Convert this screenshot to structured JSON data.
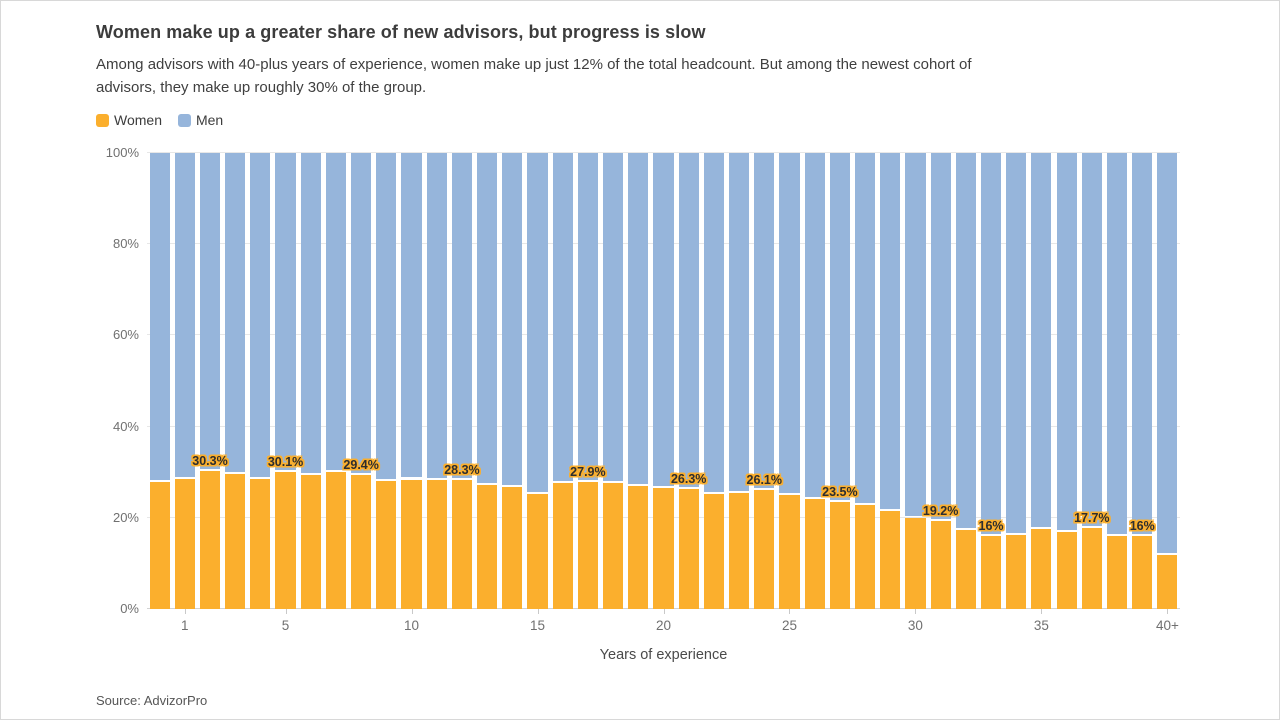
{
  "header": {
    "title": "Women make up a greater share of new advisors, but progress is slow",
    "subtitle_lines": [
      "Among advisors with 40-plus years of experience, women make up just 12% of the total headcount. But among the newest cohort of",
      "advisors, they make up roughly 30% of the group."
    ],
    "legend": [
      {
        "label": "Women",
        "color": "#fbaf2d"
      },
      {
        "label": "Men",
        "color": "#96b5db"
      }
    ]
  },
  "chart_data": {
    "type": "bar",
    "stacked": true,
    "normalized_percent": true,
    "title": "Women make up a greater share of new advisors, but progress is slow",
    "xlabel": "Years of experience",
    "ylabel": "",
    "ylim": [
      0,
      100
    ],
    "grid": true,
    "legend_position": "top-left",
    "categories": [
      "0",
      "1",
      "2",
      "3",
      "4",
      "5",
      "6",
      "7",
      "8",
      "9",
      "10",
      "11",
      "12",
      "13",
      "14",
      "15",
      "16",
      "17",
      "18",
      "19",
      "20",
      "21",
      "22",
      "23",
      "24",
      "25",
      "26",
      "27",
      "28",
      "29",
      "30",
      "31",
      "32",
      "33",
      "34",
      "35",
      "36",
      "37",
      "38",
      "39",
      "40+"
    ],
    "series": [
      {
        "name": "Women",
        "color": "#fbaf2d",
        "values": [
          27.8,
          28.5,
          30.3,
          29.5,
          28.5,
          30.1,
          29.3,
          30.0,
          29.4,
          28.1,
          28.4,
          28.2,
          28.3,
          27.2,
          26.8,
          25.3,
          27.7,
          27.9,
          27.7,
          27.0,
          26.6,
          26.3,
          25.2,
          25.4,
          26.1,
          24.9,
          24.1,
          23.5,
          22.9,
          21.6,
          19.9,
          19.2,
          17.4,
          16.0,
          16.3,
          17.5,
          16.8,
          17.7,
          16.1,
          16.0,
          11.8
        ]
      },
      {
        "name": "Men",
        "color": "#96b5db",
        "values": [
          72.2,
          71.5,
          69.7,
          70.5,
          71.5,
          69.9,
          70.7,
          70.0,
          70.6,
          71.9,
          71.6,
          71.8,
          71.7,
          72.8,
          73.2,
          74.7,
          72.3,
          72.1,
          72.3,
          73.0,
          73.4,
          73.7,
          74.8,
          74.6,
          73.9,
          75.1,
          75.9,
          76.5,
          77.1,
          78.4,
          80.1,
          80.8,
          82.6,
          84.0,
          83.7,
          82.5,
          83.2,
          82.3,
          83.9,
          84.0,
          88.2
        ]
      }
    ],
    "point_labels": {
      "2": "30.3%",
      "5": "30.1%",
      "8": "29.4%",
      "12": "28.3%",
      "17": "27.9%",
      "21": "26.3%",
      "24": "26.1%",
      "27": "23.5%",
      "31": "19.2%",
      "33": "16%",
      "37": "17.7%",
      "39": "16%"
    },
    "y_ticks": [
      {
        "value": 0,
        "label": "0%"
      },
      {
        "value": 20,
        "label": "20%"
      },
      {
        "value": 40,
        "label": "40%"
      },
      {
        "value": 60,
        "label": "60%"
      },
      {
        "value": 80,
        "label": "80%"
      },
      {
        "value": 100,
        "label": "100%"
      }
    ],
    "x_ticks": [
      {
        "index": 1,
        "label": "1"
      },
      {
        "index": 5,
        "label": "5"
      },
      {
        "index": 10,
        "label": "10"
      },
      {
        "index": 15,
        "label": "15"
      },
      {
        "index": 20,
        "label": "20"
      },
      {
        "index": 25,
        "label": "25"
      },
      {
        "index": 30,
        "label": "30"
      },
      {
        "index": 35,
        "label": "35"
      },
      {
        "index": 40,
        "label": "40+"
      }
    ]
  },
  "footer": {
    "source": "Source: AdvizorPro"
  }
}
